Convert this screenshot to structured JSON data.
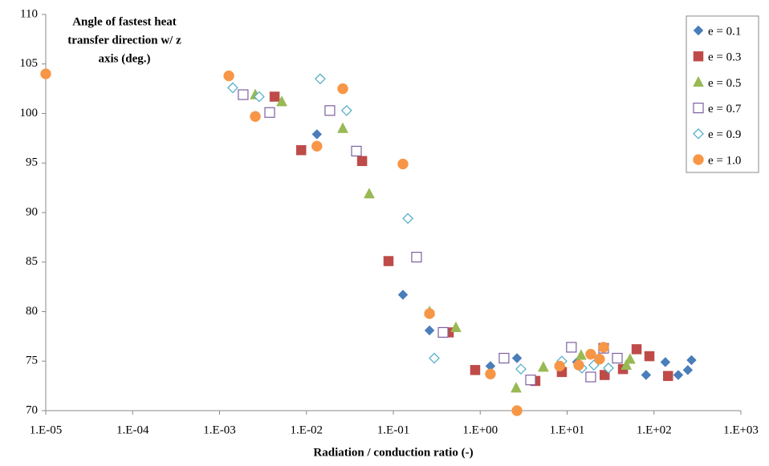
{
  "chart_data": {
    "type": "scatter",
    "xscale": "log",
    "title_lines": [
      "Angle of fastest heat",
      "transfer direction w/ z",
      "axis (deg.)"
    ],
    "xlabel": "Radiation / conduction ratio (-)",
    "xlim": [
      1e-05,
      1000
    ],
    "xticks": [
      {
        "value": 1e-05,
        "label": "1.E-05"
      },
      {
        "value": 0.0001,
        "label": "1.E-04"
      },
      {
        "value": 0.001,
        "label": "1.E-03"
      },
      {
        "value": 0.01,
        "label": "1.E-02"
      },
      {
        "value": 0.1,
        "label": "1.E-01"
      },
      {
        "value": 1,
        "label": "1.E+00"
      },
      {
        "value": 10,
        "label": "1.E+01"
      },
      {
        "value": 100,
        "label": "1.E+02"
      },
      {
        "value": 1000,
        "label": "1.E+03"
      }
    ],
    "ylim": [
      70,
      110
    ],
    "yticks": [
      70,
      75,
      80,
      85,
      90,
      95,
      100,
      105,
      110
    ],
    "legend": "top-right",
    "series": [
      {
        "name": "e = 0.1",
        "marker": "diamond",
        "color": "#4a7ebb",
        "fill": true,
        "x": [
          0.0132,
          0.129,
          0.261,
          1.31,
          2.65,
          13.0,
          81,
          135,
          190,
          245,
          270
        ],
        "values": [
          97.9,
          81.7,
          78.1,
          74.5,
          75.3,
          74.9,
          73.6,
          74.9,
          73.6,
          74.1,
          75.1
        ]
      },
      {
        "name": "e = 0.3",
        "marker": "square",
        "color": "#be4b48",
        "fill": true,
        "x": [
          0.0043,
          0.0087,
          0.0437,
          0.088,
          0.434,
          0.875,
          4.31,
          8.7,
          27,
          43.9,
          63,
          88.5,
          145
        ],
        "values": [
          101.7,
          96.3,
          95.2,
          85.1,
          77.9,
          74.1,
          73.0,
          73.9,
          73.6,
          74.2,
          76.2,
          75.5,
          73.5
        ]
      },
      {
        "name": "e = 0.5",
        "marker": "triangle",
        "color": "#98b954",
        "fill": true,
        "x": [
          0.00258,
          0.0052,
          0.0262,
          0.0528,
          0.261,
          0.525,
          2.59,
          5.33,
          14.5,
          48,
          53
        ],
        "values": [
          101.9,
          101.2,
          98.5,
          91.9,
          80.0,
          78.4,
          72.3,
          74.4,
          75.6,
          74.6,
          75.2
        ]
      },
      {
        "name": "e = 0.7",
        "marker": "square",
        "color": "#7d60a0",
        "fill": false,
        "x": [
          0.00187,
          0.00378,
          0.0186,
          0.0376,
          0.185,
          0.374,
          1.88,
          3.8,
          11.2,
          18.7,
          26.3,
          37.8
        ],
        "values": [
          101.9,
          100.1,
          100.3,
          96.2,
          85.5,
          77.9,
          75.3,
          73.1,
          76.4,
          73.4,
          76.3,
          75.3
        ]
      },
      {
        "name": "e = 0.9",
        "marker": "diamond",
        "color": "#4bacc6",
        "fill": false,
        "x": [
          0.00142,
          0.00286,
          0.0144,
          0.029,
          0.147,
          0.296,
          2.94,
          8.7,
          14.8,
          20.3,
          29.9
        ],
        "values": [
          102.6,
          101.7,
          103.5,
          100.3,
          89.4,
          75.3,
          74.2,
          75.0,
          74.3,
          74.6,
          74.3
        ]
      },
      {
        "name": "e = 1.0",
        "marker": "circle",
        "color": "#f79646",
        "fill": true,
        "x": [
          1e-05,
          0.00128,
          0.00258,
          0.0132,
          0.0262,
          0.129,
          0.261,
          1.31,
          2.65,
          8.2,
          13.6,
          18.7,
          23.6,
          26.3
        ],
        "values": [
          104.0,
          103.8,
          99.7,
          96.7,
          102.5,
          94.9,
          79.8,
          73.7,
          70.0,
          74.5,
          74.6,
          75.7,
          75.2,
          76.4
        ]
      }
    ]
  }
}
